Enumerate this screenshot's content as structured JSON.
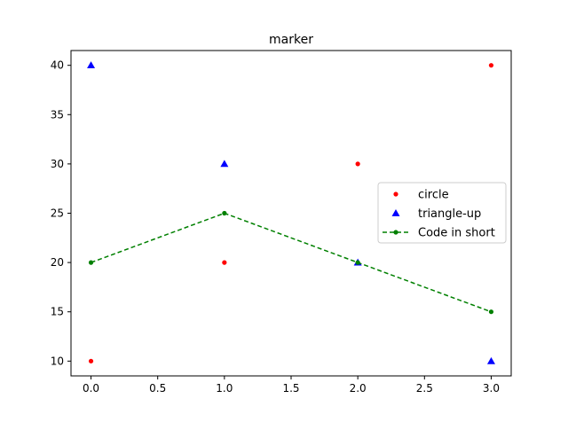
{
  "chart_data": {
    "type": "line",
    "title": "marker",
    "xlabel": "",
    "ylabel": "",
    "xlim": [
      -0.15,
      3.15
    ],
    "ylim": [
      8.5,
      41.5
    ],
    "xticks": [
      0.0,
      0.5,
      1.0,
      1.5,
      2.0,
      2.5,
      3.0
    ],
    "xtick_labels": [
      "0.0",
      "0.5",
      "1.0",
      "1.5",
      "2.0",
      "2.5",
      "3.0"
    ],
    "yticks": [
      10,
      15,
      20,
      25,
      30,
      35,
      40
    ],
    "ytick_labels": [
      "10",
      "15",
      "20",
      "25",
      "30",
      "35",
      "40"
    ],
    "grid": false,
    "legend_position": "center-right",
    "series": [
      {
        "name": "circle",
        "marker": "circle",
        "line": "none",
        "color": "#ff0000",
        "x": [
          0,
          1,
          2,
          3
        ],
        "y": [
          10,
          20,
          30,
          40
        ]
      },
      {
        "name": "triangle-up",
        "marker": "triangle-up",
        "line": "none",
        "color": "#0000ff",
        "x": [
          0,
          1,
          2,
          3
        ],
        "y": [
          40,
          30,
          20,
          10
        ]
      },
      {
        "name": "Code in short",
        "marker": "circle",
        "line": "dashed",
        "color": "#008000",
        "x": [
          0,
          1,
          2,
          3
        ],
        "y": [
          20,
          25,
          20,
          15
        ]
      }
    ]
  }
}
